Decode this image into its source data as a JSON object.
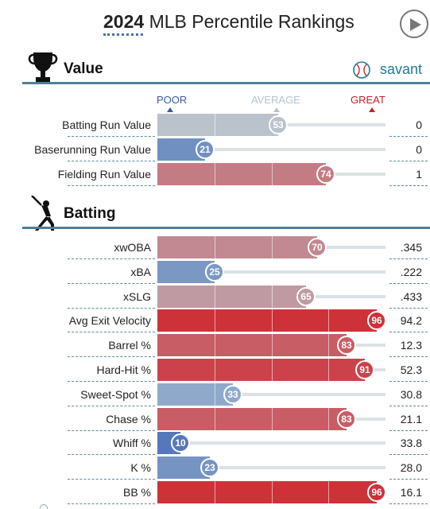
{
  "header": {
    "year": "2024",
    "title": "MLB Percentile Rankings",
    "play_icon": "play-icon"
  },
  "scale": {
    "poor": "POOR",
    "average": "AVERAGE",
    "great": "GREAT"
  },
  "sections": {
    "value": {
      "title": "Value",
      "icon": "trophy-icon",
      "brand": "savant",
      "brand_icon": "baseball-icon"
    },
    "batting": {
      "title": "Batting",
      "icon": "batter-icon"
    }
  },
  "value_rows": [
    {
      "label": "Batting Run Value",
      "percentile": 53,
      "stat": "0"
    },
    {
      "label": "Baserunning Run Value",
      "percentile": 21,
      "stat": "0"
    },
    {
      "label": "Fielding Run Value",
      "percentile": 74,
      "stat": "1"
    }
  ],
  "batting_rows": [
    {
      "label": "xwOBA",
      "percentile": 70,
      "stat": ".345"
    },
    {
      "label": "xBA",
      "percentile": 25,
      "stat": ".222"
    },
    {
      "label": "xSLG",
      "percentile": 65,
      "stat": ".433"
    },
    {
      "label": "Avg Exit Velocity",
      "percentile": 96,
      "stat": "94.2"
    },
    {
      "label": "Barrel %",
      "percentile": 83,
      "stat": "12.3"
    },
    {
      "label": "Hard-Hit %",
      "percentile": 91,
      "stat": "52.3"
    },
    {
      "label": "Sweet-Spot %",
      "percentile": 33,
      "stat": "30.8"
    },
    {
      "label": "Chase %",
      "percentile": 83,
      "stat": "21.1"
    },
    {
      "label": "Whiff %",
      "percentile": 10,
      "stat": "33.8"
    },
    {
      "label": "K %",
      "percentile": 23,
      "stat": "28.0"
    },
    {
      "label": "BB %",
      "percentile": 96,
      "stat": "16.1"
    }
  ],
  "colors": {
    "poor": "#3d63b3",
    "average": "#b9cdd6",
    "great": "#d0242b",
    "section_line": "#4f7f95",
    "brand": "#1f7a9a"
  }
}
